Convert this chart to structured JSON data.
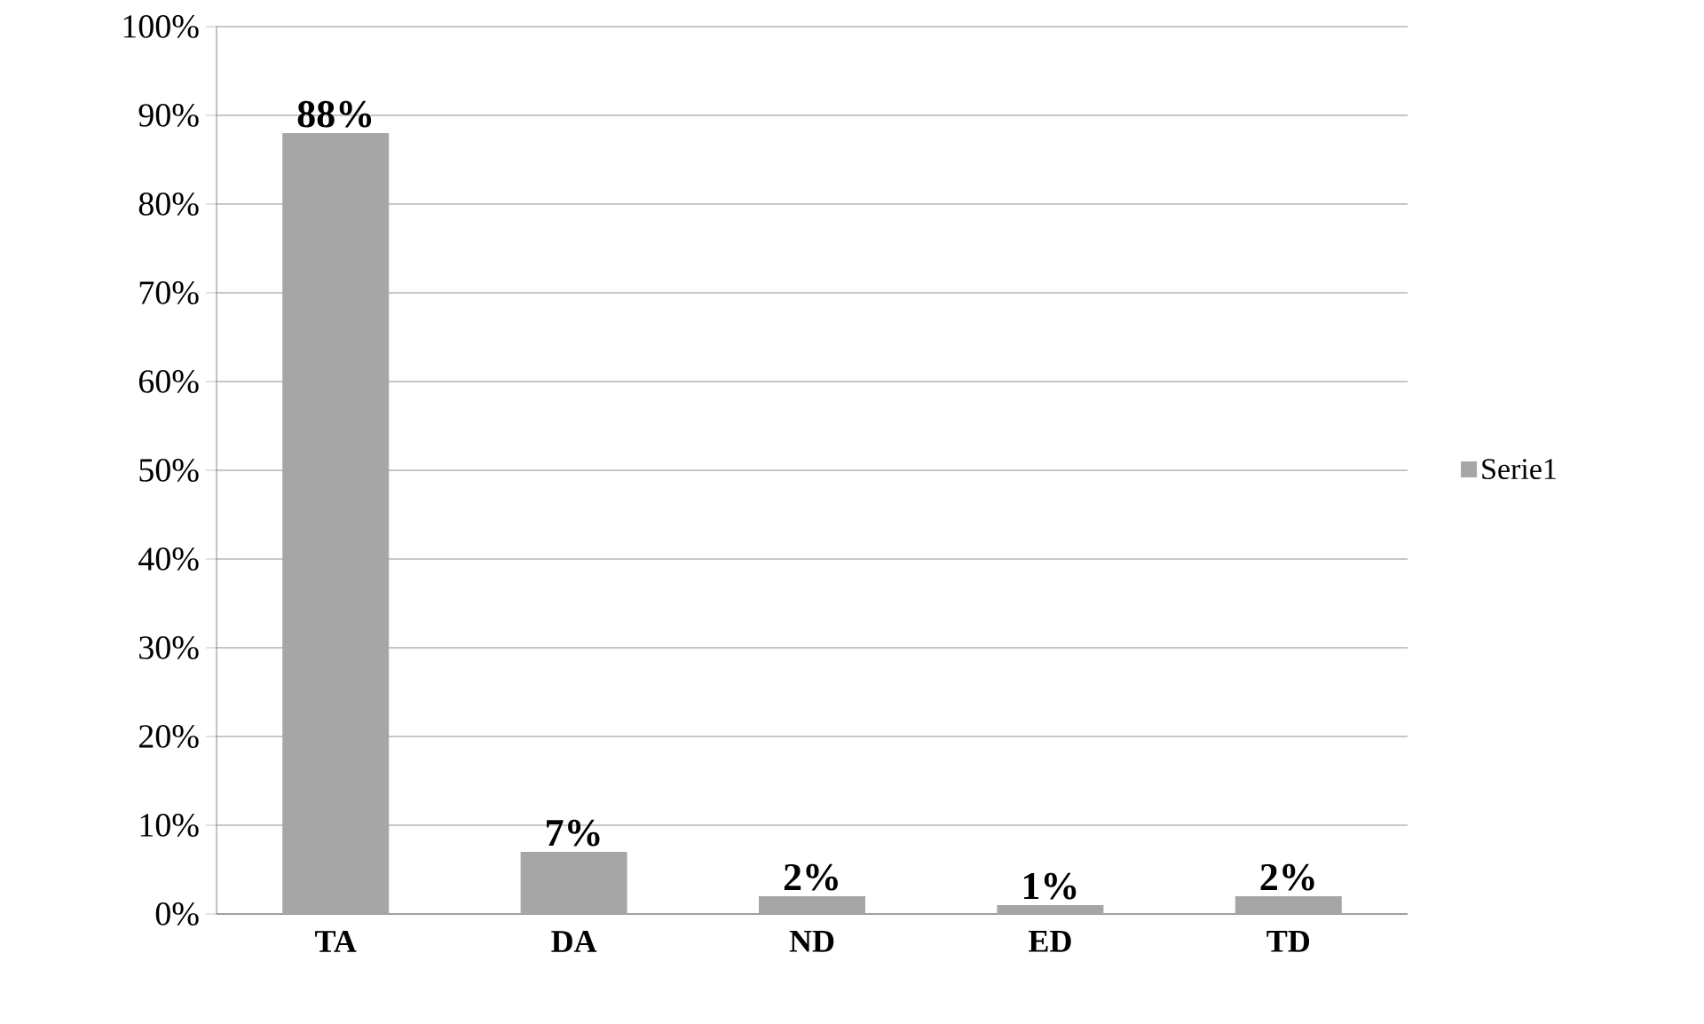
{
  "chart_data": {
    "type": "bar",
    "categories": [
      "TA",
      "DA",
      "ND",
      "ED",
      "TD"
    ],
    "series": [
      {
        "name": "Serie1",
        "color": "#a6a6a6",
        "values": [
          88,
          7,
          2,
          1,
          2
        ],
        "value_labels": [
          "88%",
          "7%",
          "2%",
          "1%",
          "2%"
        ]
      }
    ],
    "ylim": [
      0,
      100
    ],
    "yticks": [
      {
        "value": 0,
        "label": "0%"
      },
      {
        "value": 10,
        "label": "10%"
      },
      {
        "value": 20,
        "label": "20%"
      },
      {
        "value": 30,
        "label": "30%"
      },
      {
        "value": 40,
        "label": "40%"
      },
      {
        "value": 50,
        "label": "50%"
      },
      {
        "value": 60,
        "label": "60%"
      },
      {
        "value": 70,
        "label": "70%"
      },
      {
        "value": 80,
        "label": "80%"
      },
      {
        "value": 90,
        "label": "90%"
      },
      {
        "value": 100,
        "label": "100%"
      }
    ],
    "grid": "y",
    "legend": "right"
  }
}
